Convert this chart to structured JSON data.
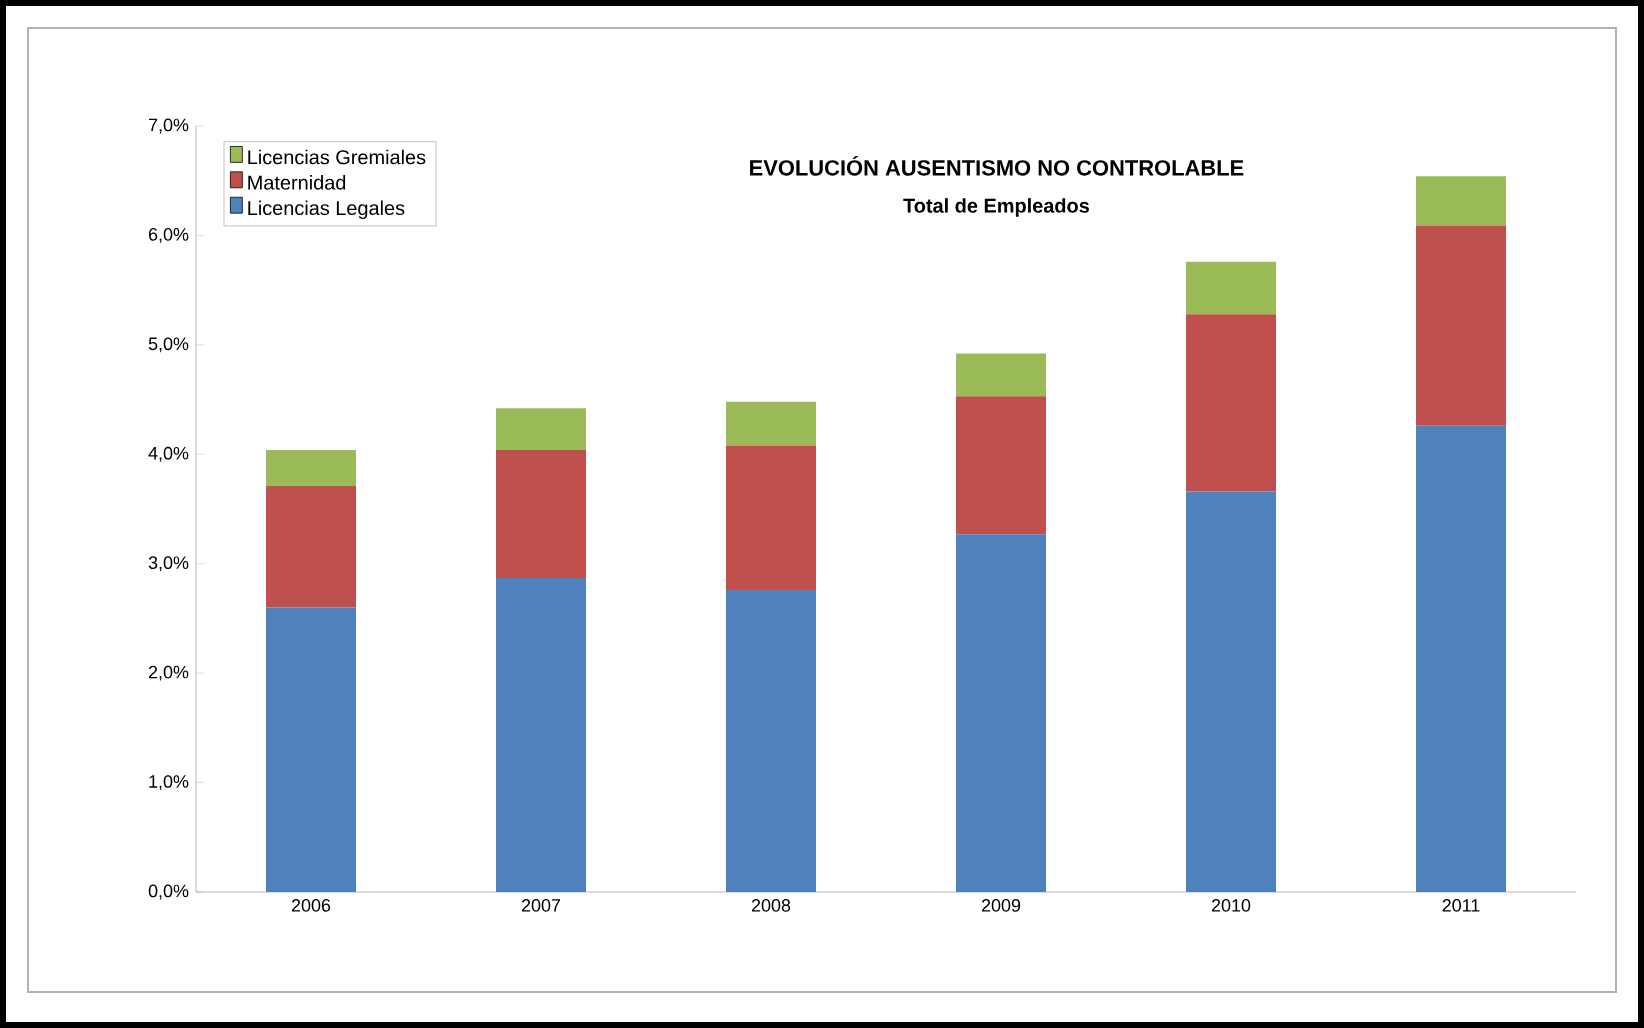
{
  "chart_data": {
    "type": "bar",
    "stacked": true,
    "title": "EVOLUCIÓN AUSENTISMO NO CONTROLABLE",
    "subtitle": "Total de Empleados",
    "categories": [
      "2006",
      "2007",
      "2008",
      "2009",
      "2010",
      "2011"
    ],
    "series": [
      {
        "name": "Licencias Legales",
        "color": "#4f81bd",
        "values": [
          2.6,
          2.87,
          2.76,
          3.27,
          3.66,
          4.26
        ]
      },
      {
        "name": "Maternidad",
        "color": "#c0504d",
        "values": [
          1.11,
          1.17,
          1.32,
          1.26,
          1.62,
          1.83
        ]
      },
      {
        "name": "Licencias Gremiales",
        "color": "#9bbb59",
        "values": [
          0.33,
          0.38,
          0.4,
          0.39,
          0.48,
          0.45
        ]
      }
    ],
    "ylim": [
      0,
      7
    ],
    "yticks": [
      {
        "value": 0,
        "label": "0,0%"
      },
      {
        "value": 1,
        "label": "1,0%"
      },
      {
        "value": 2,
        "label": "2,0%"
      },
      {
        "value": 3,
        "label": "3,0%"
      },
      {
        "value": 4,
        "label": "4,0%"
      },
      {
        "value": 5,
        "label": "5,0%"
      },
      {
        "value": 6,
        "label": "6,0%"
      },
      {
        "value": 7,
        "label": "7,0%"
      }
    ],
    "grid": false,
    "legend": "top left"
  }
}
